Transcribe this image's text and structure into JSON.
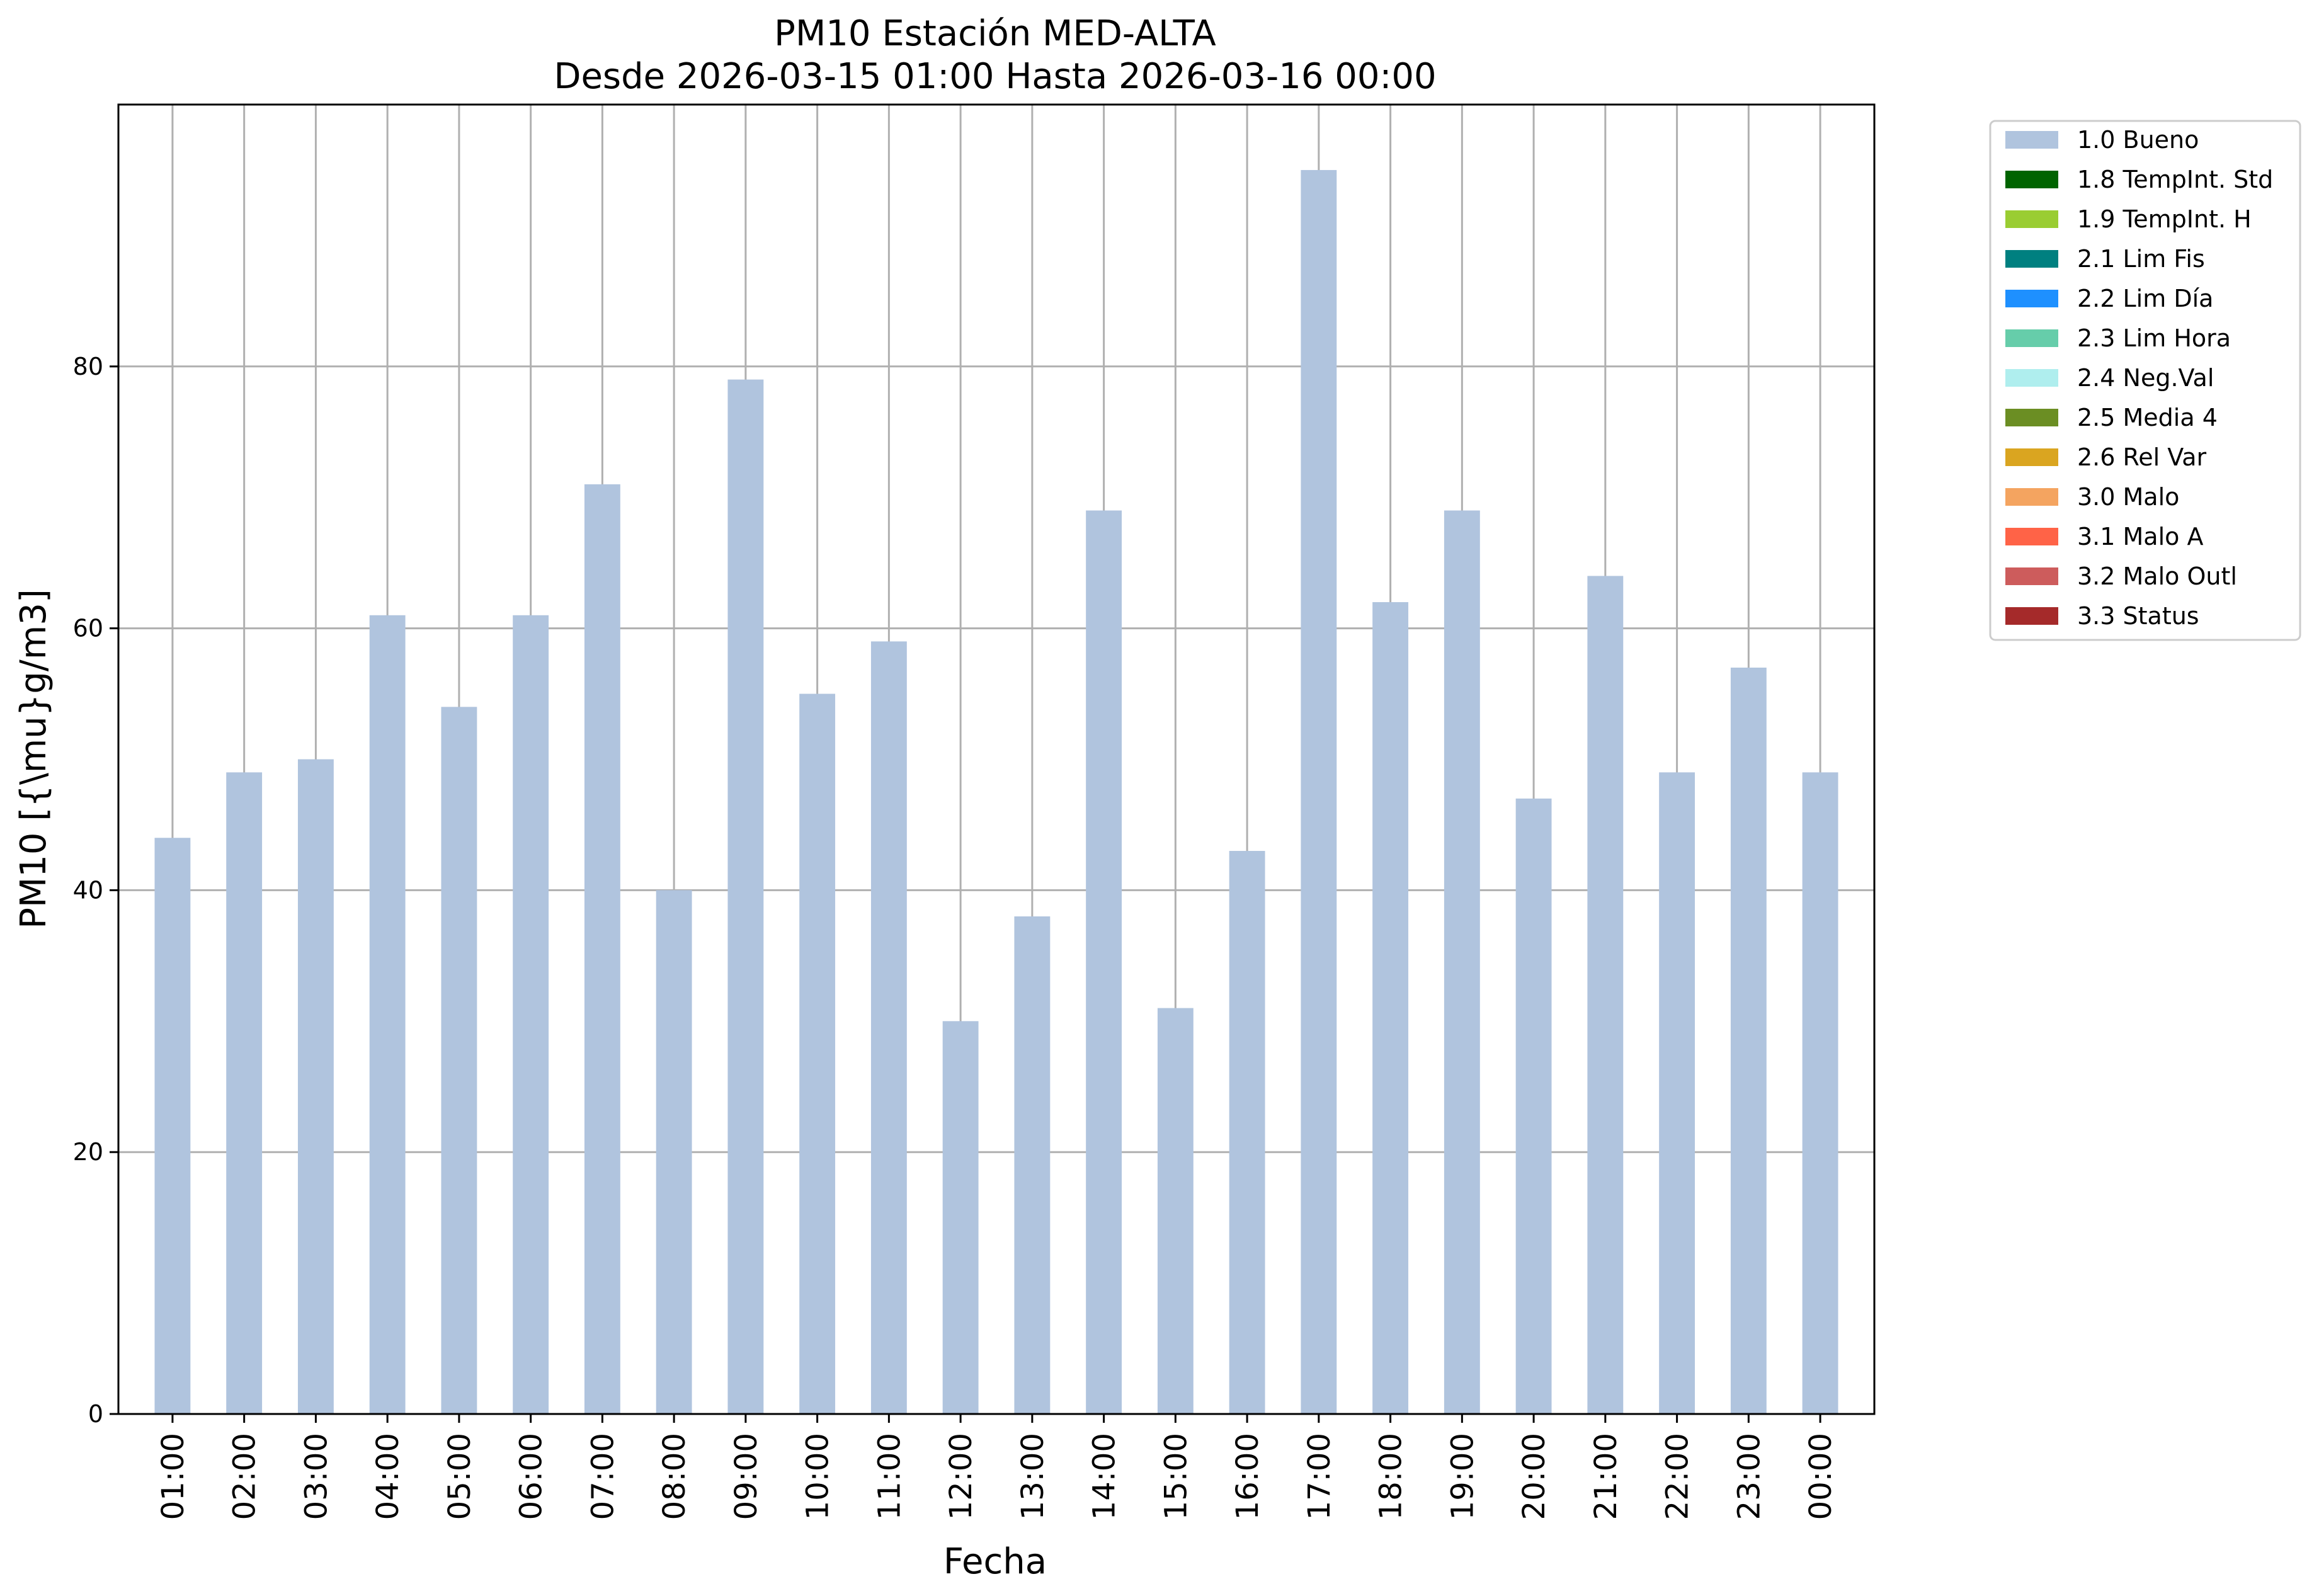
{
  "chart_data": {
    "type": "bar",
    "title": "PM10 Estación MED-ALTA",
    "subtitle": "Desde 2026-03-15 01:00 Hasta 2026-03-16 00:00",
    "xlabel": "Fecha",
    "ylabel": "PM10 [{\\mu}g/m3]",
    "ylim": [
      0,
      100
    ],
    "yticks": [
      "0",
      "20",
      "40",
      "60",
      "80"
    ],
    "ytick_values": [
      0,
      20,
      40,
      60,
      80
    ],
    "grid": true,
    "legend_placement": "outside top-right",
    "categories": [
      "01:00",
      "02:00",
      "03:00",
      "04:00",
      "05:00",
      "06:00",
      "07:00",
      "08:00",
      "09:00",
      "10:00",
      "11:00",
      "12:00",
      "13:00",
      "14:00",
      "15:00",
      "16:00",
      "17:00",
      "18:00",
      "19:00",
      "20:00",
      "21:00",
      "22:00",
      "23:00",
      "00:00"
    ],
    "series": [
      {
        "name": "1.0 Bueno",
        "color": "#b0c4de",
        "values": [
          44,
          49,
          50,
          61,
          54,
          61,
          71,
          40,
          79,
          55,
          59,
          30,
          38,
          69,
          31,
          43,
          95,
          62,
          69,
          47,
          64,
          49,
          57,
          49
        ]
      }
    ],
    "legend": [
      {
        "label": "1.0 Bueno",
        "color": "#b0c4de"
      },
      {
        "label": "1.8 TempInt. Std",
        "color": "#006400"
      },
      {
        "label": "1.9 TempInt. H",
        "color": "#9acd32"
      },
      {
        "label": "2.1 Lim Fis",
        "color": "#008080"
      },
      {
        "label": "2.2 Lim Día",
        "color": "#1e90ff"
      },
      {
        "label": "2.3 Lim Hora",
        "color": "#66cdaa"
      },
      {
        "label": "2.4 Neg.Val",
        "color": "#afeeee"
      },
      {
        "label": "2.5 Media 4",
        "color": "#6b8e23"
      },
      {
        "label": "2.6 Rel Var",
        "color": "#daa520"
      },
      {
        "label": "3.0 Malo",
        "color": "#f4a460"
      },
      {
        "label": "3.1 Malo A",
        "color": "#ff6347"
      },
      {
        "label": "3.2 Malo Outl",
        "color": "#cd5c5c"
      },
      {
        "label": "3.3 Status",
        "color": "#a52a2a"
      }
    ]
  }
}
